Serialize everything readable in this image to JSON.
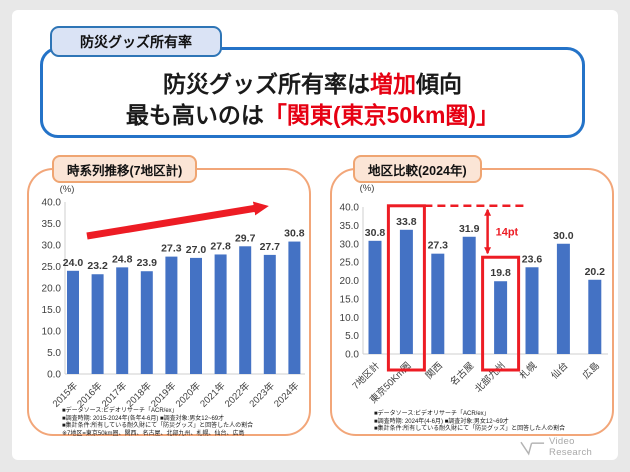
{
  "header": {
    "tab_label": "防災グッズ所有率",
    "message_line1": {
      "pre": "防災グッズ所有率は",
      "highlight": "増加",
      "post": "傾向"
    },
    "message_line2": {
      "pre": "最も高いのは",
      "highlight": "「関東(東京50km圏)」"
    }
  },
  "colors": {
    "tab_fill": "#dae3f5",
    "tab_border": "#2e75b6",
    "blue_border": "#2473c8",
    "red_text": "#e60012",
    "red_shape": "#ed1c24",
    "panel_border": "#f2a679",
    "badge_fill": "#fbe5d6",
    "badge_border": "#efa572",
    "bar_blue": "#4472c4"
  },
  "left_panel": {
    "title": "時系列推移(7地区計)",
    "unit_label": "(%)",
    "footnotes": [
      "■データソース:ビデオリサーチ「ACR/ex」",
      "■調査時期: 2015-2024年(各年4-6月) ■調査対象:男女12~69才",
      "■集計条件:所有している耐久財にて「防災グッズ」と回答した人の割合",
      "※7地区=東京50km圏、関西、名古屋、北部九州、札幌、仙台、広島"
    ]
  },
  "right_panel": {
    "title": "地区比較(2024年)",
    "unit_label": "(%)",
    "footnotes": [
      "■データソース:ビデオリサーチ「ACR/ex」",
      "■調査時期: 2024年(4-6月) ■調査対象:男女12~69才",
      "■集計条件:所有している耐久財にて「防災グッズ」と回答した人の割合"
    ]
  },
  "chart_data": [
    {
      "type": "bar",
      "title": "時系列推移(7地区計)",
      "ylabel": "(%)",
      "ylim": [
        0,
        40
      ],
      "ytick_step": 5,
      "grid": false,
      "categories": [
        "2015年",
        "2016年",
        "2017年",
        "2018年",
        "2019年",
        "2020年",
        "2021年",
        "2022年",
        "2023年",
        "2024年"
      ],
      "values": [
        24.0,
        23.2,
        24.8,
        23.9,
        27.3,
        27.0,
        27.8,
        29.7,
        27.7,
        30.8
      ],
      "annotations": {
        "trend_arrow": true
      }
    },
    {
      "type": "bar",
      "title": "地区比較(2024年)",
      "ylabel": "(%)",
      "ylim": [
        0,
        40
      ],
      "ytick_step": 5,
      "grid": false,
      "categories": [
        "7地区計",
        "東京50Km圏",
        "関西",
        "名古屋",
        "北部九州",
        "札幌",
        "仙台",
        "広島"
      ],
      "values": [
        30.8,
        33.8,
        27.3,
        31.9,
        19.8,
        23.6,
        30.0,
        20.2
      ],
      "annotations": {
        "highlight_boxes": [
          1,
          4
        ],
        "diff_label": "14pt"
      }
    }
  ],
  "footer": {
    "logo_text": "Video Research"
  }
}
